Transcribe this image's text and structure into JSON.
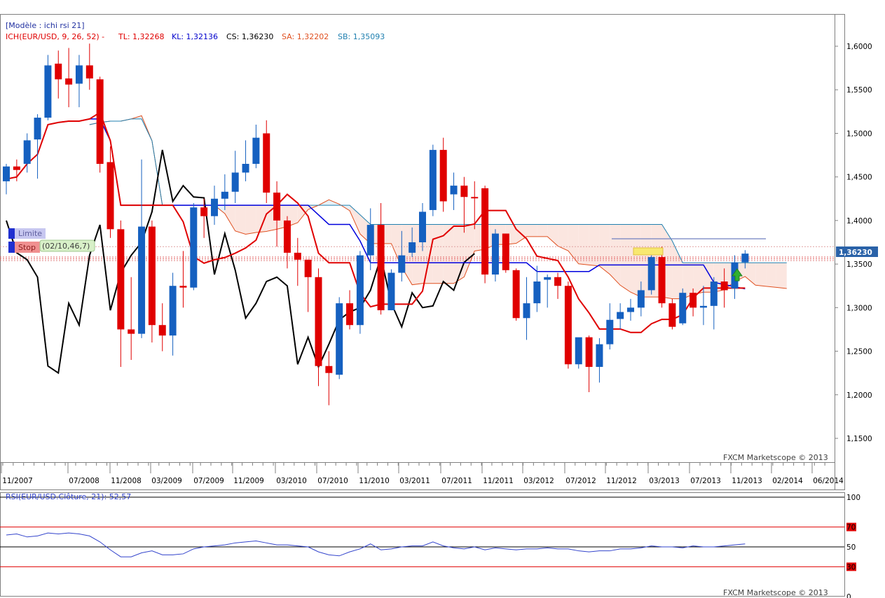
{
  "header": {
    "model_label": "[Modèle : ichi rsi 21]",
    "ich_label": "ICH(EUR/USD, 9, 26, 52) -",
    "tl_label": "TL: 1,32268",
    "kl_label": "KL: 1,32136",
    "cs_label": "CS: 1,36230",
    "sa_label": "SA: 1,32202",
    "sb_label": "SB: 1,35093"
  },
  "orders": {
    "limit_label": "Limite",
    "stop_label": "Stop",
    "info_label": "(02/10,46,7)"
  },
  "price_tag": "1,36230",
  "copyright": "FXCM Marketscope © 2013",
  "rsi_label": "RSI(EUR/USD.Clôture, 21): 52,57",
  "colors": {
    "bull": "#1560c0",
    "bear": "#e00000",
    "tenkan": "#e00000",
    "kijun": "#0000dd",
    "chikou": "#000000",
    "span_a": "#e05020",
    "span_b": "#2080b0",
    "cloud_bull": "#e6f1f8",
    "cloud_bear": "#fbe6e0",
    "rsi": "#3344cc"
  },
  "chart_data": [
    {
      "type": "candlestick",
      "symbol": "EUR/USD",
      "x_ticks": [
        "11/2007",
        "07/2008",
        "11/2008",
        "03/2009",
        "07/2009",
        "11/2009",
        "03/2010",
        "07/2010",
        "11/2010",
        "03/2011",
        "07/2011",
        "11/2011",
        "03/2012",
        "07/2012",
        "11/2012",
        "03/2013",
        "07/2013",
        "11/2013",
        "02/2014",
        "06/2014"
      ],
      "y_ticks": [
        "1,6000",
        "1,5500",
        "1,5000",
        "1,4500",
        "1,4000",
        "1,3500",
        "1,3000",
        "1,2500",
        "1,2000",
        "1,1500"
      ],
      "ylim": [
        1.115,
        1.635
      ],
      "candles": [
        [
          1.445,
          1.462,
          1.43,
          1.465
        ],
        [
          1.462,
          1.458,
          1.445,
          1.47
        ],
        [
          1.465,
          1.492,
          1.455,
          1.5
        ],
        [
          1.493,
          1.518,
          1.448,
          1.522
        ],
        [
          1.518,
          1.578,
          1.515,
          1.59
        ],
        [
          1.58,
          1.562,
          1.54,
          1.595
        ],
        [
          1.563,
          1.556,
          1.53,
          1.598
        ],
        [
          1.557,
          1.578,
          1.53,
          1.59
        ],
        [
          1.578,
          1.563,
          1.55,
          1.603
        ],
        [
          1.562,
          1.465,
          1.455,
          1.565
        ],
        [
          1.467,
          1.39,
          1.38,
          1.485
        ],
        [
          1.39,
          1.275,
          1.232,
          1.4
        ],
        [
          1.275,
          1.27,
          1.24,
          1.335
        ],
        [
          1.27,
          1.393,
          1.265,
          1.47
        ],
        [
          1.393,
          1.28,
          1.26,
          1.4
        ],
        [
          1.28,
          1.268,
          1.25,
          1.305
        ],
        [
          1.268,
          1.325,
          1.245,
          1.34
        ],
        [
          1.325,
          1.323,
          1.3,
          1.365
        ],
        [
          1.323,
          1.415,
          1.32,
          1.42
        ],
        [
          1.415,
          1.405,
          1.38,
          1.425
        ],
        [
          1.405,
          1.425,
          1.395,
          1.44
        ],
        [
          1.425,
          1.433,
          1.412,
          1.453
        ],
        [
          1.433,
          1.455,
          1.42,
          1.48
        ],
        [
          1.455,
          1.465,
          1.445,
          1.492
        ],
        [
          1.465,
          1.495,
          1.46,
          1.51
        ],
        [
          1.5,
          1.432,
          1.42,
          1.515
        ],
        [
          1.432,
          1.4,
          1.37,
          1.445
        ],
        [
          1.4,
          1.363,
          1.345,
          1.405
        ],
        [
          1.363,
          1.355,
          1.325,
          1.38
        ],
        [
          1.355,
          1.335,
          1.295,
          1.355
        ],
        [
          1.335,
          1.233,
          1.21,
          1.345
        ],
        [
          1.233,
          1.225,
          1.188,
          1.25
        ],
        [
          1.223,
          1.305,
          1.218,
          1.312
        ],
        [
          1.305,
          1.28,
          1.275,
          1.32
        ],
        [
          1.28,
          1.36,
          1.27,
          1.365
        ],
        [
          1.36,
          1.395,
          1.343,
          1.414
        ],
        [
          1.395,
          1.297,
          1.292,
          1.42
        ],
        [
          1.297,
          1.34,
          1.297,
          1.344
        ],
        [
          1.34,
          1.36,
          1.33,
          1.388
        ],
        [
          1.363,
          1.375,
          1.358,
          1.392
        ],
        [
          1.375,
          1.41,
          1.365,
          1.42
        ],
        [
          1.412,
          1.481,
          1.405,
          1.487
        ],
        [
          1.481,
          1.422,
          1.41,
          1.495
        ],
        [
          1.43,
          1.44,
          1.412,
          1.455
        ],
        [
          1.44,
          1.427,
          1.386,
          1.45
        ],
        [
          1.427,
          1.426,
          1.39,
          1.445
        ],
        [
          1.437,
          1.338,
          1.328,
          1.44
        ],
        [
          1.338,
          1.385,
          1.33,
          1.39
        ],
        [
          1.385,
          1.343,
          1.34,
          1.385
        ],
        [
          1.343,
          1.288,
          1.285,
          1.345
        ],
        [
          1.288,
          1.305,
          1.263,
          1.335
        ],
        [
          1.305,
          1.33,
          1.295,
          1.348
        ],
        [
          1.332,
          1.335,
          1.3,
          1.338
        ],
        [
          1.335,
          1.325,
          1.31,
          1.34
        ],
        [
          1.325,
          1.235,
          1.23,
          1.33
        ],
        [
          1.235,
          1.266,
          1.23,
          1.265
        ],
        [
          1.266,
          1.232,
          1.203,
          1.268
        ],
        [
          1.232,
          1.258,
          1.214,
          1.265
        ],
        [
          1.258,
          1.286,
          1.252,
          1.305
        ],
        [
          1.287,
          1.295,
          1.275,
          1.305
        ],
        [
          1.295,
          1.3,
          1.285,
          1.31
        ],
        [
          1.3,
          1.32,
          1.29,
          1.33
        ],
        [
          1.32,
          1.358,
          1.315,
          1.36
        ],
        [
          1.358,
          1.305,
          1.3,
          1.37
        ],
        [
          1.305,
          1.278,
          1.275,
          1.31
        ],
        [
          1.282,
          1.317,
          1.28,
          1.322
        ],
        [
          1.317,
          1.3,
          1.29,
          1.322
        ],
        [
          1.3,
          1.302,
          1.28,
          1.325
        ],
        [
          1.302,
          1.33,
          1.275,
          1.335
        ],
        [
          1.33,
          1.32,
          1.3,
          1.345
        ],
        [
          1.322,
          1.352,
          1.31,
          1.36
        ],
        [
          1.352,
          1.362,
          1.345,
          1.366
        ]
      ]
    },
    {
      "type": "line",
      "title": "RSI(EUR/USD.Clôture, 21): 52,57",
      "y_ticks": [
        "100",
        "70",
        "50",
        "30",
        "0"
      ],
      "ylim": [
        0,
        100
      ],
      "values": [
        62,
        63,
        60,
        61,
        64,
        63,
        64,
        63,
        61,
        55,
        47,
        40,
        40,
        44,
        46,
        42,
        42,
        43,
        48,
        50,
        51,
        52,
        54,
        55,
        56,
        54,
        52,
        52,
        51,
        50,
        45,
        42,
        41,
        45,
        48,
        53,
        47,
        48,
        50,
        51,
        51,
        55,
        51,
        49,
        48,
        50,
        47,
        49,
        48,
        47,
        48,
        48,
        49,
        48,
        48,
        46,
        45,
        46,
        46,
        48,
        48,
        49,
        51,
        50,
        50,
        49,
        51,
        50,
        50,
        51,
        52,
        53
      ]
    }
  ]
}
